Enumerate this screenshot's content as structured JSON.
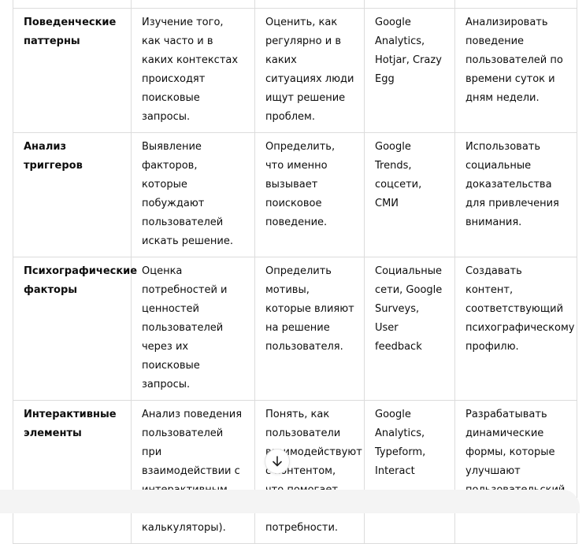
{
  "rows": [
    {
      "factor": "Поведенческие паттерны",
      "description": "Изучение того, как часто и в каких контекстах происходят поисковые запросы.",
      "goal": "Оценить, как регулярно и в каких ситуациях люди ищут решение проблем.",
      "tools": "Google Analytics, Hotjar, Crazy Egg",
      "recommendation": "Анализировать поведение пользователей по времени суток и дням недели."
    },
    {
      "factor": "Анализ триггеров",
      "description": "Выявление факторов, которые побуждают пользователей искать решение.",
      "goal": "Определить, что именно вызывает поисковое поведение.",
      "tools": "Google Trends, соцсети, СМИ",
      "recommendation": "Использовать социальные доказательства для привлечения внимания."
    },
    {
      "factor": "Психографические факторы",
      "description": "Оценка потребностей и ценностей пользователей через их поисковые запросы.",
      "goal": "Определить мотивы, которые влияют на решение пользователя.",
      "tools": "Социальные сети, Google Surveys, User feedback",
      "recommendation": "Создавать контент, соответствующий психографическому профилю."
    },
    {
      "factor": "Интерактивные элементы",
      "description": "Анализ поведения пользователей при взаимодействии с интерактивным контентом (тесты, калькуляторы).",
      "goal": "Понять, как пользователи взаимодействуют с контентом, что помогает выявить потребности.",
      "tools": "Google Analytics, Typeform, Interact",
      "recommendation": "Разрабатывать динамические формы, которые улучшают пользовательский опыт."
    }
  ],
  "scroll_down_icon": "arrow-down-icon"
}
